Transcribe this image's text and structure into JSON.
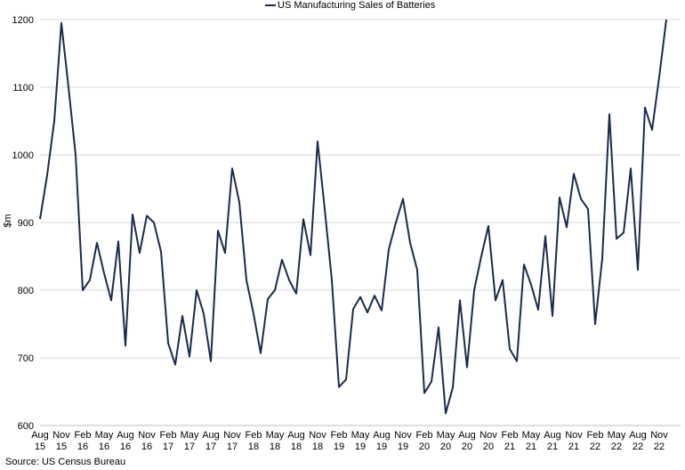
{
  "chart_data": {
    "type": "line",
    "title": "",
    "legend": "US Manufacturing Sales of Batteries",
    "xlabel": "",
    "ylabel": "$m",
    "ylim": [
      600,
      1200
    ],
    "yticks": [
      600,
      700,
      800,
      900,
      1000,
      1100,
      1200
    ],
    "grid": true,
    "series_color": "#1b2a4e",
    "x_tick_labels": [
      {
        "month": "Aug",
        "year": "15",
        "index": 0
      },
      {
        "month": "Nov",
        "year": "15",
        "index": 3
      },
      {
        "month": "Feb",
        "year": "16",
        "index": 6
      },
      {
        "month": "May",
        "year": "16",
        "index": 9
      },
      {
        "month": "Aug",
        "year": "16",
        "index": 12
      },
      {
        "month": "Nov",
        "year": "16",
        "index": 15
      },
      {
        "month": "Feb",
        "year": "17",
        "index": 18
      },
      {
        "month": "May",
        "year": "17",
        "index": 21
      },
      {
        "month": "Aug",
        "year": "17",
        "index": 24
      },
      {
        "month": "Nov",
        "year": "17",
        "index": 27
      },
      {
        "month": "Feb",
        "year": "18",
        "index": 30
      },
      {
        "month": "May",
        "year": "18",
        "index": 33
      },
      {
        "month": "Aug",
        "year": "18",
        "index": 36
      },
      {
        "month": "Nov",
        "year": "18",
        "index": 39
      },
      {
        "month": "Feb",
        "year": "19",
        "index": 42
      },
      {
        "month": "May",
        "year": "19",
        "index": 45
      },
      {
        "month": "Aug",
        "year": "19",
        "index": 48
      },
      {
        "month": "Nov",
        "year": "19",
        "index": 51
      },
      {
        "month": "Feb",
        "year": "20",
        "index": 54
      },
      {
        "month": "May",
        "year": "20",
        "index": 57
      },
      {
        "month": "Aug",
        "year": "20",
        "index": 60
      },
      {
        "month": "Nov",
        "year": "20",
        "index": 63
      },
      {
        "month": "Feb",
        "year": "21",
        "index": 66
      },
      {
        "month": "May",
        "year": "21",
        "index": 69
      },
      {
        "month": "Aug",
        "year": "21",
        "index": 72
      },
      {
        "month": "Nov",
        "year": "21",
        "index": 75
      },
      {
        "month": "Feb",
        "year": "22",
        "index": 78
      },
      {
        "month": "May",
        "year": "22",
        "index": 81
      },
      {
        "month": "Aug",
        "year": "22",
        "index": 84
      },
      {
        "month": "Nov",
        "year": "22",
        "index": 87
      }
    ],
    "series": [
      {
        "name": "US Manufacturing Sales of Batteries",
        "values": [
          905,
          970,
          1050,
          1195,
          1100,
          1000,
          800,
          815,
          870,
          825,
          785,
          872,
          718,
          912,
          855,
          910,
          900,
          857,
          722,
          690,
          762,
          702,
          800,
          765,
          695,
          888,
          855,
          980,
          930,
          815,
          765,
          707,
          787,
          800,
          845,
          815,
          795,
          905,
          852,
          1020,
          920,
          815,
          657,
          668,
          772,
          790,
          767,
          792,
          770,
          860,
          900,
          935,
          870,
          830,
          648,
          665,
          745,
          618,
          656,
          785,
          686,
          800,
          850,
          895,
          785,
          815,
          713,
          695,
          838,
          808,
          771,
          880,
          762,
          937,
          893,
          972,
          935,
          920,
          750,
          847,
          1060,
          876,
          885,
          980,
          830,
          1070,
          1037,
          1115,
          1200
        ]
      }
    ]
  },
  "source": "Source: US Census Bureau"
}
